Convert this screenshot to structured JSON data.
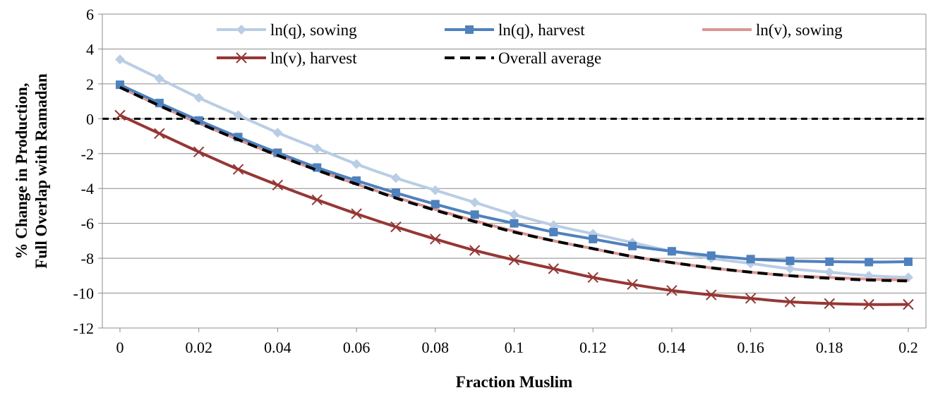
{
  "chart_data": {
    "type": "line",
    "title": "",
    "xlabel": "Fraction Muslim",
    "ylabel_lines": [
      "% Change in Production,",
      "Full Overlap with Ramadan"
    ],
    "xlim": [
      0,
      0.2
    ],
    "ylim": [
      -12,
      6
    ],
    "x_ticks": [
      "0",
      "0.02",
      "0.04",
      "0.06",
      "0.08",
      "0.1",
      "0.12",
      "0.14",
      "0.16",
      "0.18",
      "0.2"
    ],
    "y_ticks": [
      "6",
      "4",
      "2",
      "0",
      "-2",
      "-4",
      "-6",
      "-8",
      "-10",
      "-12"
    ],
    "grid": "horizontal",
    "legend_position": "top",
    "x": [
      0,
      0.01,
      0.02,
      0.03,
      0.04,
      0.05,
      0.06,
      0.07,
      0.08,
      0.09,
      0.1,
      0.11,
      0.12,
      0.13,
      0.14,
      0.15,
      0.16,
      0.17,
      0.18,
      0.19,
      0.2
    ],
    "series": [
      {
        "name": "ln(q), sowing",
        "color": "#b9cde5",
        "marker": "diamond",
        "values": [
          3.4,
          2.3,
          1.2,
          0.2,
          -0.8,
          -1.7,
          -2.6,
          -3.4,
          -4.1,
          -4.8,
          -5.5,
          -6.1,
          -6.6,
          -7.1,
          -7.6,
          -8.0,
          -8.3,
          -8.6,
          -8.8,
          -9.0,
          -9.1
        ]
      },
      {
        "name": "ln(q), harvest",
        "color": "#4f81bd",
        "marker": "square",
        "values": [
          1.95,
          0.9,
          -0.1,
          -1.05,
          -1.95,
          -2.8,
          -3.55,
          -4.25,
          -4.9,
          -5.5,
          -6.0,
          -6.5,
          -6.9,
          -7.3,
          -7.6,
          -7.85,
          -8.05,
          -8.15,
          -8.2,
          -8.22,
          -8.2
        ]
      },
      {
        "name": "ln(v), sowing",
        "color": "#d99694",
        "marker": "none",
        "values": [
          1.8,
          0.75,
          -0.25,
          -1.2,
          -2.1,
          -2.95,
          -3.75,
          -4.5,
          -5.2,
          -5.85,
          -6.45,
          -7.0,
          -7.45,
          -7.9,
          -8.25,
          -8.55,
          -8.8,
          -9.0,
          -9.1,
          -9.2,
          -9.25
        ]
      },
      {
        "name": "ln(v), harvest",
        "color": "#953735",
        "marker": "x",
        "values": [
          0.2,
          -0.85,
          -1.9,
          -2.9,
          -3.8,
          -4.65,
          -5.45,
          -6.2,
          -6.9,
          -7.55,
          -8.1,
          -8.6,
          -9.1,
          -9.5,
          -9.85,
          -10.1,
          -10.3,
          -10.5,
          -10.6,
          -10.65,
          -10.65
        ]
      },
      {
        "name": "Overall average",
        "color": "#000000",
        "marker": "none",
        "dashed": true,
        "values": [
          1.8,
          0.75,
          -0.25,
          -1.2,
          -2.1,
          -2.95,
          -3.75,
          -4.55,
          -5.25,
          -5.9,
          -6.5,
          -7.0,
          -7.45,
          -7.9,
          -8.25,
          -8.55,
          -8.8,
          -9.0,
          -9.15,
          -9.25,
          -9.3
        ]
      }
    ]
  }
}
